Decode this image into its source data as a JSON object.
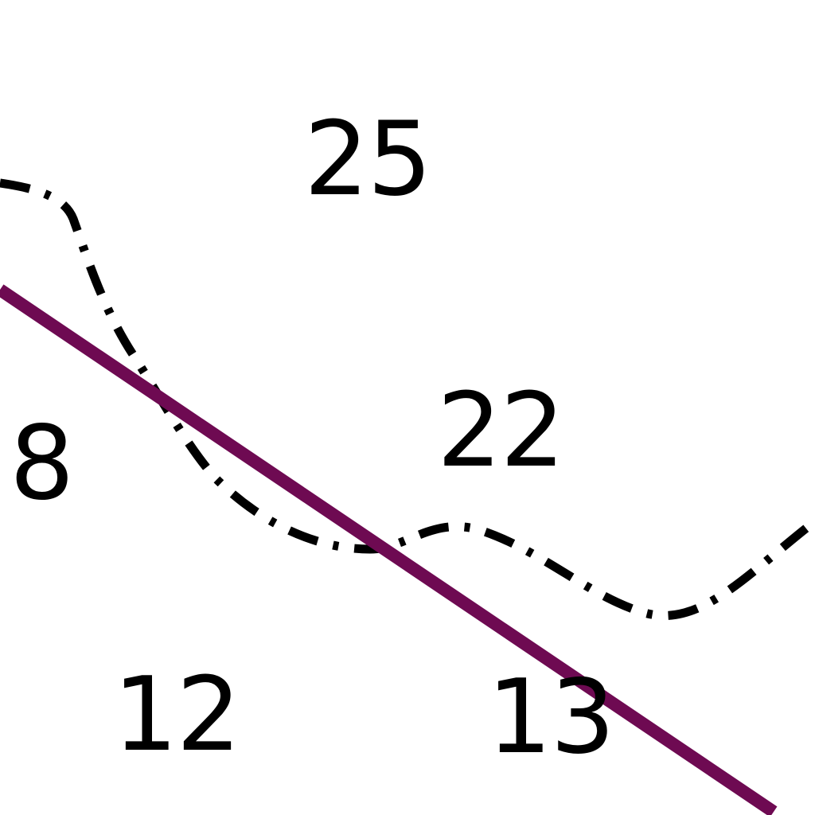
{
  "map": {
    "parcel_labels": {
      "label_25": "25",
      "label_22": "22",
      "label_8": "8",
      "label_12": "12",
      "label_13": "13"
    },
    "colors": {
      "background": "#ffffff",
      "road_line": "#6e0a52",
      "boundary_line": "#000000",
      "label_text": "#000000"
    },
    "features": {
      "road_line": "straight-road-line",
      "boundary_line": "dash-dot-boundary-line"
    }
  }
}
